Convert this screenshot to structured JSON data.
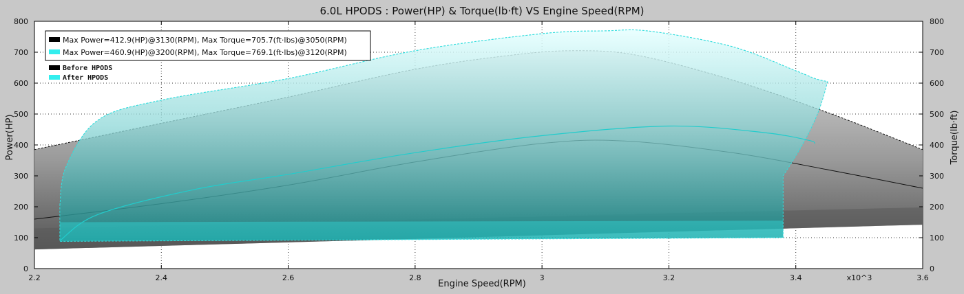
{
  "chart_data": {
    "type": "line",
    "title": "6.0L HPODS : Power(HP) & Torque(lb·ft) VS Engine Speed(RPM)",
    "xlabel": "Engine Speed(RPM)",
    "ylabel_left": "Power(HP)",
    "ylabel_right": "Torque(lb·ft)",
    "x_multiplier_label": "x10^3",
    "xlim": [
      2.2,
      3.6
    ],
    "ylim": [
      0,
      800
    ],
    "x_ticks": [
      "2.2",
      "2.4",
      "2.6",
      "2.8",
      "3",
      "3.2",
      "3.4",
      "3.6"
    ],
    "y_ticks": [
      "0",
      "100",
      "200",
      "300",
      "400",
      "500",
      "600",
      "700",
      "800"
    ],
    "grid": true,
    "legend_top": {
      "placement": "top-left",
      "entries": [
        {
          "color": "#000000",
          "label": "Max Power=412.9(HP)@3130(RPM), Max Torque=705.7(ft·lbs)@3050(RPM)"
        },
        {
          "color": "#33eeee",
          "label": "Max Power=460.9(HP)@3200(RPM), Max Torque=769.1(ft·lbs)@3120(RPM)"
        }
      ]
    },
    "legend_series": {
      "placement": "top-left",
      "entries": [
        {
          "color": "#000000",
          "label": "Before HPODS"
        },
        {
          "color": "#33eeee",
          "label": "After  HPODS"
        }
      ]
    },
    "series": [
      {
        "name": "Before HPODS",
        "color": "#000000",
        "torque": {
          "x": [
            2.2,
            2.4,
            2.6,
            2.8,
            2.95,
            3.05,
            3.15,
            3.3,
            3.45,
            3.6
          ],
          "y": [
            385,
            470,
            555,
            645,
            690,
            705,
            690,
            610,
            505,
            385
          ]
        },
        "power": {
          "x": [
            2.2,
            2.4,
            2.6,
            2.8,
            3.0,
            3.13,
            3.3,
            3.45,
            3.6
          ],
          "y": [
            160,
            210,
            270,
            345,
            405,
            413,
            375,
            320,
            260
          ]
        },
        "band_low": {
          "x": [
            2.2,
            3.6
          ],
          "y": [
            62,
            142
          ]
        },
        "band_mid": {
          "x": [
            2.2,
            3.6
          ],
          "y": [
            130,
            198
          ]
        }
      },
      {
        "name": "After HPODS",
        "color": "#33eeee",
        "torque": {
          "x": [
            2.24,
            2.25,
            2.3,
            2.4,
            2.6,
            2.8,
            3.0,
            3.1,
            3.17,
            3.3,
            3.4,
            3.43,
            3.45
          ],
          "y": [
            205,
            330,
            480,
            545,
            615,
            705,
            760,
            769,
            768,
            718,
            640,
            615,
            605
          ]
        },
        "power": {
          "x": [
            2.24,
            2.3,
            2.45,
            2.6,
            2.8,
            3.0,
            3.2,
            3.35,
            3.42,
            3.43
          ],
          "y": [
            90,
            175,
            255,
            305,
            375,
            430,
            461,
            440,
            415,
            405
          ]
        },
        "band_low": {
          "x": [
            2.24,
            3.38
          ],
          "y": [
            88,
            100
          ]
        },
        "band_mid": {
          "x": [
            2.24,
            3.38
          ],
          "y": [
            150,
            155
          ]
        }
      }
    ]
  }
}
